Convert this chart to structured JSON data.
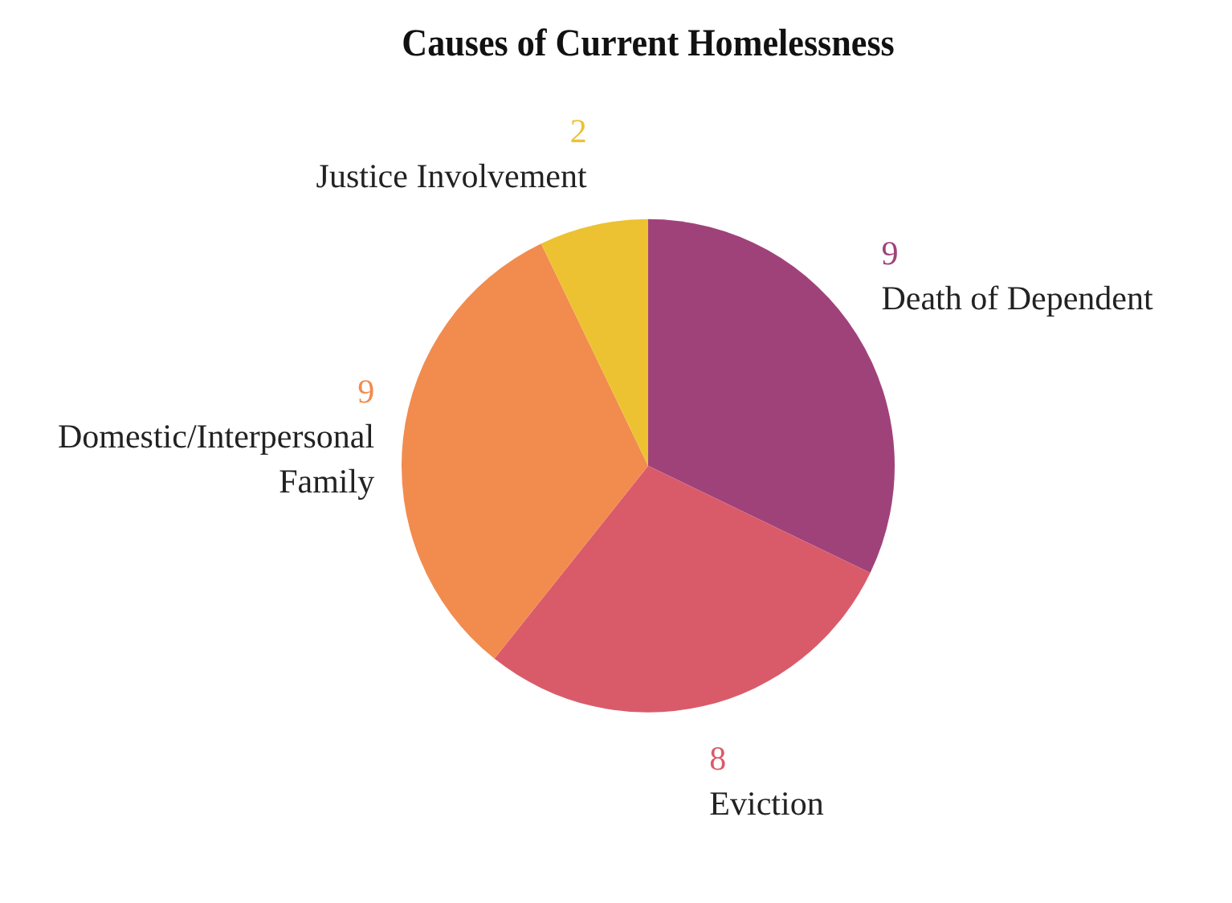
{
  "chart_data": {
    "type": "pie",
    "title": "Causes of Current Homelessness",
    "categories": [
      "Death of Dependent",
      "Eviction",
      "Domestic/Interpersonal Family",
      "Justice Involvement"
    ],
    "values": [
      9,
      8,
      9,
      2
    ],
    "colors": [
      "#a0427a",
      "#d95b6a",
      "#f28b4e",
      "#ecc232"
    ],
    "data_labels": true,
    "legend": false
  }
}
